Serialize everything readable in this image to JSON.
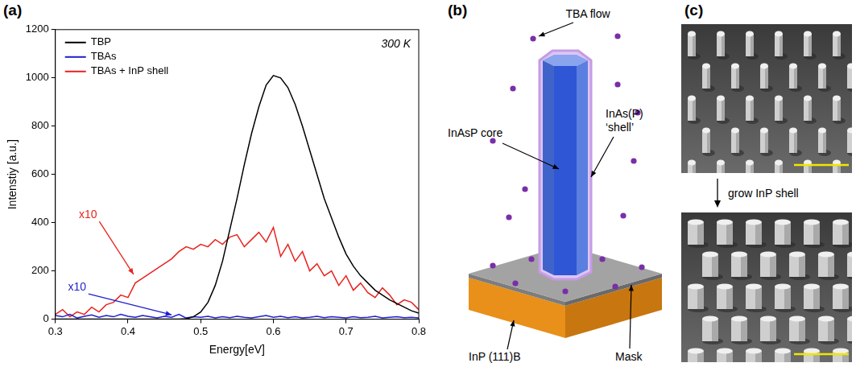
{
  "chart_data": {
    "type": "line",
    "panel_label": "(a)",
    "x_label": "Energy[eV]",
    "y_label": "Intenstiy [a.u.]",
    "x": [
      0.3,
      0.31,
      0.32,
      0.33,
      0.34,
      0.35,
      0.36,
      0.37,
      0.38,
      0.39,
      0.4,
      0.41,
      0.42,
      0.43,
      0.44,
      0.45,
      0.46,
      0.47,
      0.48,
      0.49,
      0.5,
      0.51,
      0.52,
      0.53,
      0.54,
      0.55,
      0.56,
      0.57,
      0.58,
      0.59,
      0.6,
      0.61,
      0.62,
      0.63,
      0.64,
      0.65,
      0.66,
      0.67,
      0.68,
      0.69,
      0.7,
      0.71,
      0.72,
      0.73,
      0.74,
      0.75,
      0.76,
      0.77,
      0.78,
      0.79,
      0.8
    ],
    "series": [
      {
        "name": "TBP",
        "color": "#000000",
        "values": [
          0,
          0,
          0,
          0,
          0,
          0,
          0,
          0,
          0,
          0,
          0,
          0,
          0,
          0,
          0,
          0,
          0,
          0,
          2,
          10,
          30,
          70,
          140,
          240,
          370,
          500,
          640,
          770,
          880,
          970,
          1010,
          1000,
          960,
          890,
          800,
          700,
          600,
          500,
          420,
          340,
          270,
          220,
          180,
          150,
          120,
          100,
          80,
          65,
          50,
          35,
          25
        ]
      },
      {
        "name": "TBAs",
        "color": "#1f1fd0",
        "values": [
          15,
          10,
          20,
          5,
          12,
          18,
          8,
          15,
          10,
          20,
          12,
          8,
          15,
          10,
          5,
          12,
          8,
          20,
          5,
          10,
          8,
          12,
          5,
          10,
          6,
          12,
          8,
          5,
          10,
          15,
          8,
          12,
          6,
          10,
          5,
          8,
          12,
          6,
          10,
          8,
          5,
          10,
          6,
          8,
          12,
          5,
          8,
          10,
          6,
          8,
          5
        ]
      },
      {
        "name": "TBAs + InP shell",
        "color": "#e8231e",
        "values": [
          20,
          40,
          10,
          30,
          20,
          50,
          30,
          60,
          70,
          100,
          90,
          150,
          170,
          190,
          210,
          230,
          250,
          280,
          300,
          290,
          310,
          300,
          330,
          310,
          340,
          350,
          300,
          330,
          360,
          320,
          380,
          260,
          310,
          240,
          280,
          200,
          230,
          180,
          200,
          140,
          180,
          120,
          150,
          110,
          90,
          130,
          100,
          60,
          80,
          70,
          40
        ]
      }
    ],
    "annotations": [
      {
        "text": "300 K"
      },
      {
        "text": "x10",
        "series": "TBAs + InP shell"
      },
      {
        "text": "x10",
        "series": "TBAs"
      }
    ],
    "xlim": [
      0.3,
      0.8
    ],
    "xticks": [
      0.3,
      0.4,
      0.5,
      0.6,
      0.7,
      0.8
    ],
    "ylim": [
      0,
      1200
    ],
    "yticks": [
      0,
      200,
      400,
      600,
      800,
      1000,
      1200
    ],
    "grid": false,
    "legend": "upper left"
  },
  "diagram": {
    "panel_label": "(b)",
    "labels": {
      "flow": "TBA flow",
      "core": "InAsP core",
      "shell": "InAs(P) ‘shell’",
      "substrate": "InP (111)B",
      "mask": "Mask"
    }
  },
  "images": {
    "panel_label": "(c)",
    "step": "grow InP shell"
  }
}
